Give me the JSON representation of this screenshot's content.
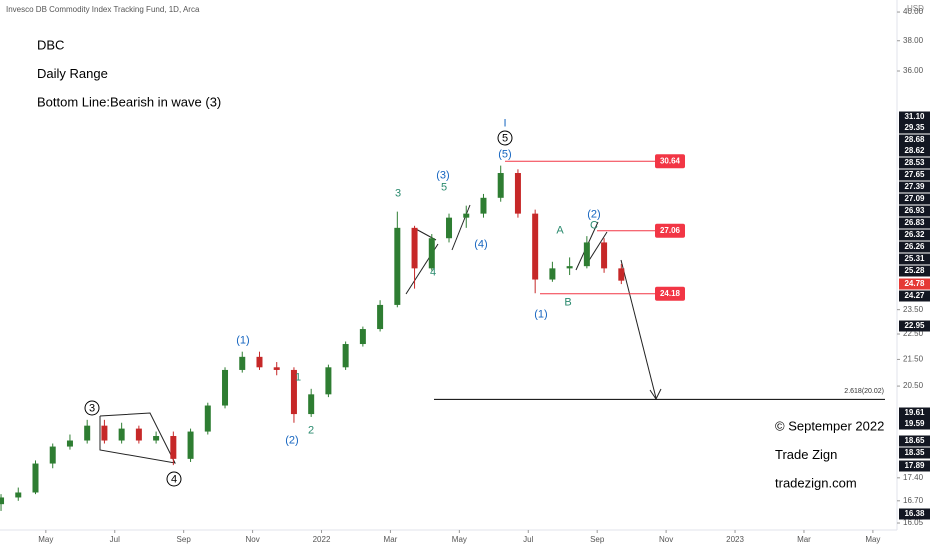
{
  "chart_data": {
    "type": "candlestick",
    "title": "Invesco DB Commodity Index Tracking Fund, 1D, Arca",
    "currency": "USD",
    "log_scale": true,
    "grid": false,
    "up_color": "#2e7d32",
    "down_color": "#c62828",
    "ylim": [
      15.71,
      40.87
    ],
    "xlim": [
      -0.33,
      25.7
    ],
    "xticks": [
      {
        "value": 1,
        "label": "May"
      },
      {
        "value": 3,
        "label": "Jul"
      },
      {
        "value": 5,
        "label": "Sep"
      },
      {
        "value": 7,
        "label": "Nov"
      },
      {
        "value": 9,
        "label": "2022"
      },
      {
        "value": 11,
        "label": "Mar"
      },
      {
        "value": 13,
        "label": "May"
      },
      {
        "value": 15,
        "label": "Jul"
      },
      {
        "value": 17,
        "label": "Sep"
      },
      {
        "value": 19,
        "label": "Nov"
      },
      {
        "value": 21,
        "label": "2023"
      },
      {
        "value": 23,
        "label": "Mar"
      },
      {
        "value": 25,
        "label": "May"
      }
    ],
    "yticks": [
      {
        "value": 40,
        "label": "40.00"
      },
      {
        "value": 38,
        "label": "38.00"
      },
      {
        "value": 36,
        "label": "36.00"
      },
      {
        "value": 23.5,
        "label": "23.50"
      },
      {
        "value": 22.5,
        "label": "22.50"
      },
      {
        "value": 21.5,
        "label": "21.50"
      },
      {
        "value": 20.5,
        "label": "20.50"
      },
      {
        "value": 17.4,
        "label": "17.40"
      },
      {
        "value": 16.7,
        "label": "16.70"
      },
      {
        "value": 16.05,
        "label": "16.05"
      }
    ],
    "price_labels": [
      {
        "value": 31.1,
        "label": "31.10"
      },
      {
        "value": 29.35,
        "label": "29.35"
      },
      {
        "value": 28.68,
        "label": "28.68"
      },
      {
        "value": 28.62,
        "label": "28.62"
      },
      {
        "value": 28.53,
        "label": "28.53"
      },
      {
        "value": 27.65,
        "label": "27.65"
      },
      {
        "value": 27.39,
        "label": "27.39"
      },
      {
        "value": 27.09,
        "label": "27.09"
      },
      {
        "value": 26.93,
        "label": "26.93"
      },
      {
        "value": 26.83,
        "label": "26.83"
      },
      {
        "value": 26.32,
        "label": "26.32"
      },
      {
        "value": 26.26,
        "label": "26.26"
      },
      {
        "value": 25.31,
        "label": "25.31"
      },
      {
        "value": 25.28,
        "label": "25.28"
      },
      {
        "value": 24.78,
        "label": "24.78"
      },
      {
        "value": 24.27,
        "label": "24.27"
      },
      {
        "value": 22.95,
        "label": "22.95"
      },
      {
        "value": 19.61,
        "label": "19.61"
      },
      {
        "value": 19.59,
        "label": "19.59"
      },
      {
        "value": 18.65,
        "label": "18.65"
      },
      {
        "value": 18.35,
        "label": "18.35"
      },
      {
        "value": 17.89,
        "label": "17.89"
      },
      {
        "value": 16.38,
        "label": "16.38"
      }
    ],
    "levels": [
      30.64,
      27.06,
      24.18
    ],
    "fib_level": 20.02,
    "fib_label": "2.618(20.02)",
    "candles": {
      "x": [
        -0.3,
        0.2,
        0.7,
        1.2,
        1.7,
        2.2,
        2.7,
        3.2,
        3.7,
        4.2,
        4.7,
        5.2,
        5.7,
        6.2,
        6.7,
        7.2,
        7.7,
        8.2,
        8.7,
        9.2,
        9.7,
        10.2,
        10.7,
        11.2,
        11.7,
        12.2,
        12.7,
        13.2,
        13.7,
        14.2,
        14.7,
        15.2,
        15.7,
        16.2,
        16.7,
        17.2,
        17.7
      ],
      "open": [
        16.6,
        16.8,
        16.95,
        17.85,
        18.4,
        18.6,
        19.1,
        18.6,
        19.0,
        18.6,
        18.75,
        18.0,
        18.9,
        19.8,
        21.1,
        21.6,
        21.2,
        21.1,
        19.5,
        20.2,
        21.2,
        22.1,
        22.7,
        23.7,
        27.2,
        25.3,
        26.7,
        27.7,
        27.9,
        28.7,
        30.0,
        27.9,
        24.8,
        25.3,
        25.4,
        26.5,
        25.3
      ],
      "high": [
        16.9,
        17.1,
        17.95,
        18.5,
        18.8,
        19.3,
        19.3,
        19.2,
        19.1,
        18.9,
        18.9,
        19.0,
        19.9,
        21.2,
        21.8,
        21.8,
        21.4,
        21.2,
        20.4,
        21.3,
        22.2,
        22.8,
        23.9,
        28.0,
        27.3,
        26.9,
        27.9,
        28.3,
        28.9,
        30.4,
        30.2,
        28.1,
        25.6,
        25.8,
        26.8,
        26.7,
        25.5
      ],
      "low": [
        16.4,
        16.7,
        16.9,
        17.7,
        18.3,
        18.5,
        18.5,
        18.5,
        18.5,
        18.5,
        17.8,
        17.9,
        18.8,
        19.7,
        21.0,
        21.1,
        20.9,
        19.2,
        19.4,
        20.1,
        21.1,
        22.0,
        22.6,
        23.6,
        24.4,
        25.2,
        26.5,
        27.2,
        27.7,
        28.5,
        27.7,
        24.2,
        24.7,
        25.0,
        25.3,
        25.1,
        24.6
      ],
      "close": [
        16.8,
        16.95,
        17.85,
        18.4,
        18.6,
        19.1,
        18.6,
        19.0,
        18.6,
        18.75,
        18.0,
        18.9,
        19.8,
        21.1,
        21.6,
        21.2,
        21.1,
        19.5,
        20.2,
        21.2,
        22.1,
        22.7,
        23.7,
        27.2,
        25.3,
        26.7,
        27.7,
        27.9,
        28.7,
        30.0,
        27.9,
        24.8,
        25.3,
        25.4,
        26.5,
        25.3,
        24.75
      ]
    },
    "waves": [
      "3",
      "4",
      "(1)",
      "(2)",
      "1",
      "2",
      "3",
      "4",
      "(3)",
      "5",
      "(4)",
      "I",
      "5",
      "(5)",
      "A",
      "B",
      "C",
      "(1)",
      "(2)"
    ],
    "notes": [
      "DBC",
      "Daily Range",
      "Bottom Line:Bearish in wave (3)"
    ],
    "credits": [
      "© Septemper 2022",
      "Trade Zign",
      "tradezign.com"
    ]
  }
}
